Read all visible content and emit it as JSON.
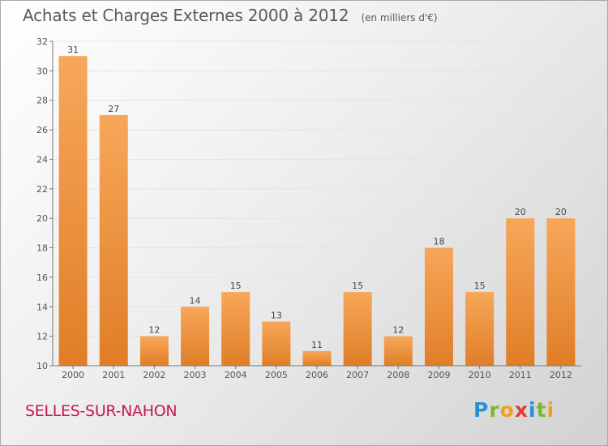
{
  "header": {
    "title": "Achats et Charges Externes 2000 à 2012",
    "unit": "(en milliers d'€)"
  },
  "footer": {
    "commune": "SELLES-SUR-NAHON",
    "brand_letters": [
      {
        "char": "P",
        "color": "#2a8fd4"
      },
      {
        "char": "r",
        "color": "#7cb82f"
      },
      {
        "char": "o",
        "color": "#f0a020"
      },
      {
        "char": "x",
        "color": "#e03a3a"
      },
      {
        "char": "i",
        "color": "#2a8fd4"
      },
      {
        "char": "t",
        "color": "#7cb82f"
      },
      {
        "char": "i",
        "color": "#f0a020"
      }
    ]
  },
  "colors": {
    "bar_light": "#f7a75a",
    "bar_dark": "#e07e27",
    "bar_label": "#444444",
    "axis": "#777777",
    "grid": "#e4e4e4"
  },
  "chart_data": {
    "type": "bar",
    "title": "Achats et Charges Externes 2000 à 2012",
    "subtitle": "(en milliers d'€)",
    "xlabel": "",
    "ylabel": "",
    "categories": [
      "2000",
      "2001",
      "2002",
      "2003",
      "2004",
      "2005",
      "2006",
      "2007",
      "2008",
      "2009",
      "2010",
      "2011",
      "2012"
    ],
    "values": [
      31,
      27,
      12,
      14,
      15,
      13,
      11,
      15,
      12,
      18,
      15,
      20,
      20
    ],
    "ylim": [
      10,
      32
    ],
    "yticks": [
      10,
      12,
      14,
      16,
      18,
      20,
      22,
      24,
      26,
      28,
      30,
      32
    ],
    "grid": true,
    "legend": "none"
  }
}
